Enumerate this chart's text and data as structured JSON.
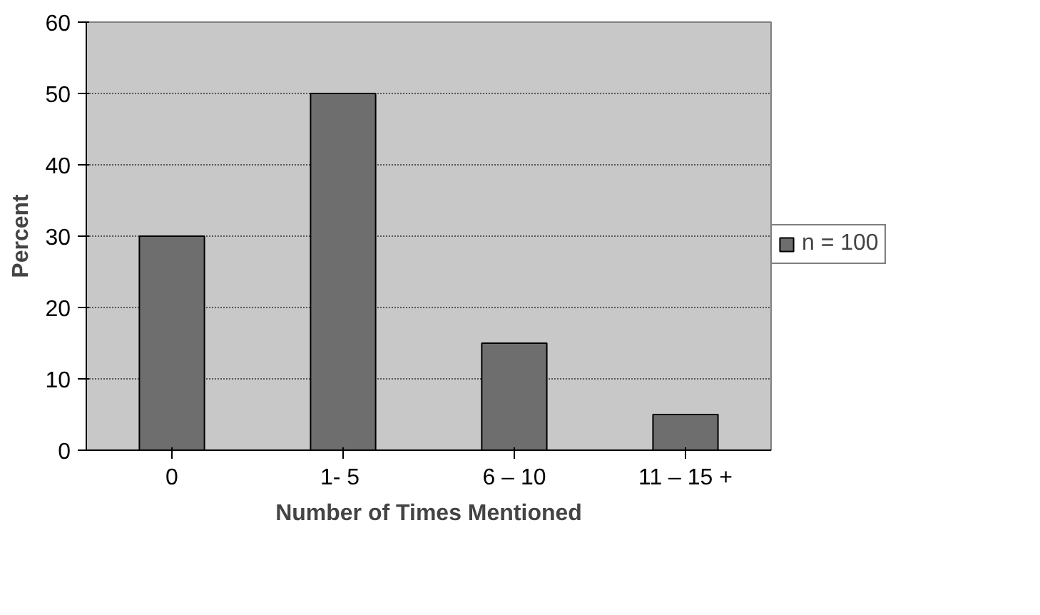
{
  "chart_data": {
    "type": "bar",
    "xlabel": "Number of Times Mentioned",
    "ylabel": "Percent",
    "categories": [
      "0",
      "1-  5",
      "6 – 10",
      "11 – 15 +"
    ],
    "series": [
      {
        "name": "n = 100",
        "color": "#6e6e6e",
        "values": [
          30,
          50,
          15,
          5
        ]
      }
    ],
    "ylim": [
      0,
      60
    ],
    "yticks": [
      0,
      10,
      20,
      30,
      40,
      50,
      60
    ],
    "grid": "y",
    "legend": "right"
  }
}
